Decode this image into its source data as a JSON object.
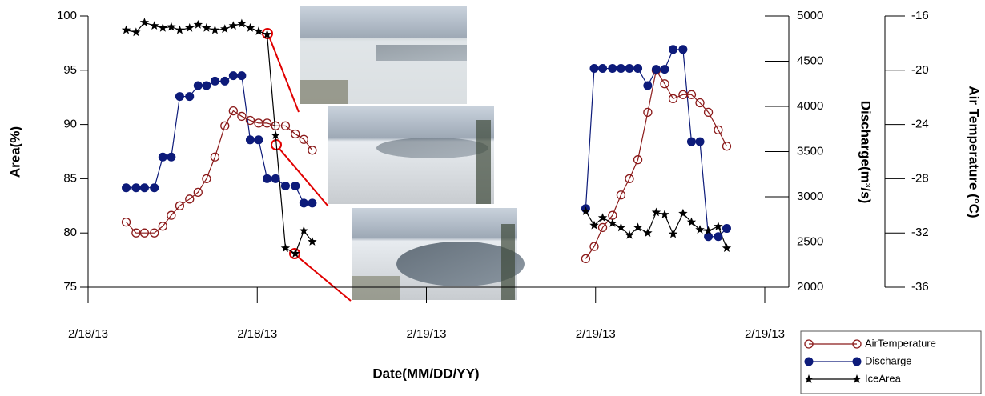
{
  "chart_data": {
    "type": "line",
    "x_label": "Date(MM/DD/YY)",
    "y_label": "Area(%)",
    "y2_label": "Discharge(m³/s)",
    "y3_label": "Air Temperature (°C)",
    "x": [
      2.7,
      3.4,
      4.0,
      4.7,
      5.3,
      5.9,
      6.5,
      7.2,
      7.8,
      8.4,
      9.0,
      9.7,
      10.3,
      10.9,
      11.5,
      12.1,
      12.7,
      13.3,
      14.0,
      14.7,
      15.3,
      15.9,
      null,
      35.3,
      35.9,
      36.5,
      37.2,
      37.8,
      38.4,
      39.0,
      39.7,
      40.3,
      40.9,
      41.5,
      42.2,
      42.8,
      43.4,
      44.0,
      44.7,
      45.3
    ],
    "xlim": [
      0,
      48
    ],
    "xticks": [
      {
        "value": 0,
        "label": "2/18/13"
      },
      {
        "value": 12,
        "label": "2/18/13"
      },
      {
        "value": 24,
        "label": "2/19/13"
      },
      {
        "value": 36,
        "label": "2/19/13"
      },
      {
        "value": 48,
        "label": "2/19/13"
      }
    ],
    "ylim": [
      75,
      100
    ],
    "yticks": [
      75,
      80,
      85,
      90,
      95,
      100
    ],
    "y2lim": [
      2000,
      5000
    ],
    "y2ticks": [
      2000,
      2500,
      3000,
      3500,
      4000,
      4500,
      5000
    ],
    "y3lim": [
      -36,
      -16
    ],
    "y3ticks": [
      -36,
      -32,
      -28,
      -24,
      -20,
      -16
    ],
    "legend": "lower right",
    "series": [
      {
        "name": "AirTemperature",
        "color": "#8b1a1a",
        "marker": "crossed-circle",
        "axis": "y3",
        "values": [
          -31.2,
          -32.0,
          -32.0,
          -32.0,
          -31.5,
          -30.7,
          -30.0,
          -29.5,
          -29.0,
          -28.0,
          -26.4,
          -24.1,
          -23.0,
          -23.4,
          -23.7,
          -23.9,
          -23.9,
          -24.1,
          -24.1,
          -24.7,
          -25.1,
          -25.9,
          null,
          -33.9,
          -33.0,
          -31.6,
          -30.7,
          -29.2,
          -28.0,
          -26.6,
          -23.1,
          -20.0,
          -21.0,
          -22.1,
          -21.8,
          -21.8,
          -22.4,
          -23.1,
          -24.4,
          -25.6
        ]
      },
      {
        "name": "Discharge",
        "color": "#0d1b7a",
        "marker": "circle",
        "axis": "y2",
        "values": [
          3100,
          3100,
          3100,
          3100,
          3440,
          3440,
          4110,
          4110,
          4230,
          4230,
          4280,
          4280,
          4340,
          4340,
          3630,
          3630,
          3200,
          3200,
          3120,
          3120,
          2930,
          2930,
          null,
          2870,
          4420,
          4420,
          4420,
          4420,
          4420,
          4420,
          4230,
          4410,
          4410,
          4630,
          4630,
          3610,
          3610,
          2560,
          2560,
          2650
        ]
      },
      {
        "name": "IceArea",
        "color": "#000000",
        "marker": "star",
        "values": [
          98.7,
          98.5,
          99.4,
          99.1,
          98.9,
          99.0,
          98.7,
          98.9,
          99.2,
          98.9,
          98.7,
          98.8,
          99.1,
          99.3,
          98.9,
          98.6,
          98.3,
          89.0,
          78.6,
          78.1,
          80.2,
          79.2,
          null,
          82.0,
          80.7,
          81.4,
          80.9,
          80.5,
          79.8,
          80.5,
          80.0,
          81.9,
          81.7,
          79.9,
          81.8,
          81.0,
          80.3,
          80.2,
          80.6,
          78.6
        ]
      }
    ]
  }
}
